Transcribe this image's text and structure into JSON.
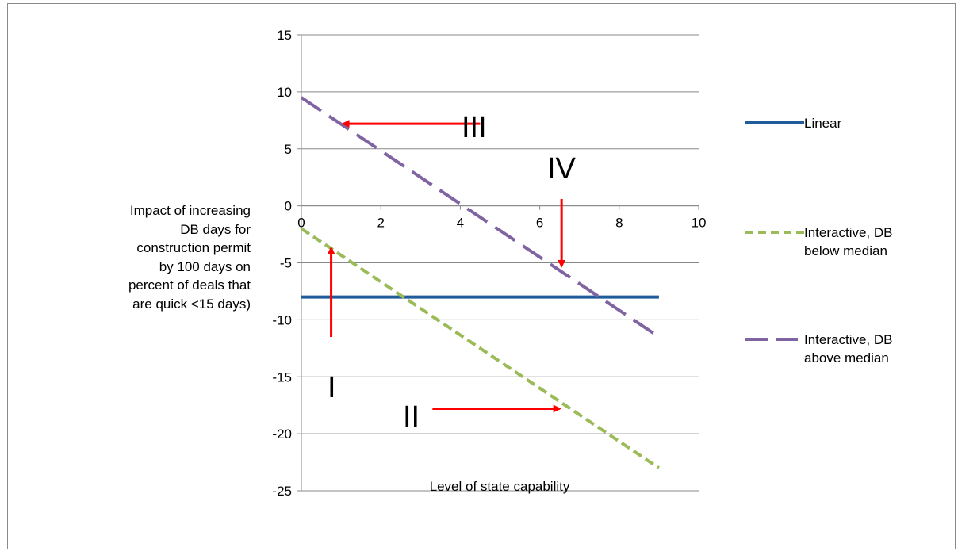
{
  "chart_data": {
    "type": "line",
    "title": "",
    "xlabel": "Level of state capability",
    "ylabel": "Impact of increasing DB days for construction permit by 100 days on percent of deals that are quick <15 days)",
    "ylabel_lines": [
      "Impact of increasing",
      "DB days for",
      "construction permit",
      "by 100 days on",
      "percent of deals that",
      "are quick <15 days)"
    ],
    "xlim": [
      0,
      10
    ],
    "ylim": [
      -25,
      15
    ],
    "x_ticks": [
      0,
      2,
      4,
      6,
      8,
      10
    ],
    "y_ticks": [
      15,
      10,
      5,
      0,
      -5,
      -10,
      -15,
      -20,
      -25
    ],
    "grid": true,
    "legend_position": "right",
    "series": [
      {
        "name": "Linear",
        "name_lines": [
          "Linear"
        ],
        "x": [
          0,
          9
        ],
        "y": [
          -8,
          -8
        ],
        "color": "#1f5c99",
        "style": "solid"
      },
      {
        "name": "Interactive, DB below median",
        "name_lines": [
          "Interactive, DB",
          "below median"
        ],
        "x": [
          0,
          9
        ],
        "y": [
          -2,
          -23
        ],
        "color": "#9bbb59",
        "style": "dashed"
      },
      {
        "name": "Interactive, DB above median",
        "name_lines": [
          "Interactive, DB",
          "above median"
        ],
        "x": [
          0,
          9
        ],
        "y": [
          9.5,
          -11.5
        ],
        "color": "#8064a2",
        "style": "longdash"
      }
    ],
    "annotations": [
      {
        "text": "I",
        "arrow_from": [
          0.75,
          -11.5
        ],
        "arrow_to": [
          0.75,
          -3.7
        ]
      },
      {
        "text": "II",
        "arrow_from": [
          3.3,
          -17.8
        ],
        "arrow_to": [
          6.5,
          -17.8
        ]
      },
      {
        "text": "III",
        "arrow_from": [
          4.5,
          7.2
        ],
        "arrow_to": [
          1.05,
          7.2
        ]
      },
      {
        "text": "IV",
        "arrow_from": [
          6.55,
          0.6
        ],
        "arrow_to": [
          6.55,
          -5.3
        ]
      }
    ],
    "annotation_color": "#ff0000"
  }
}
